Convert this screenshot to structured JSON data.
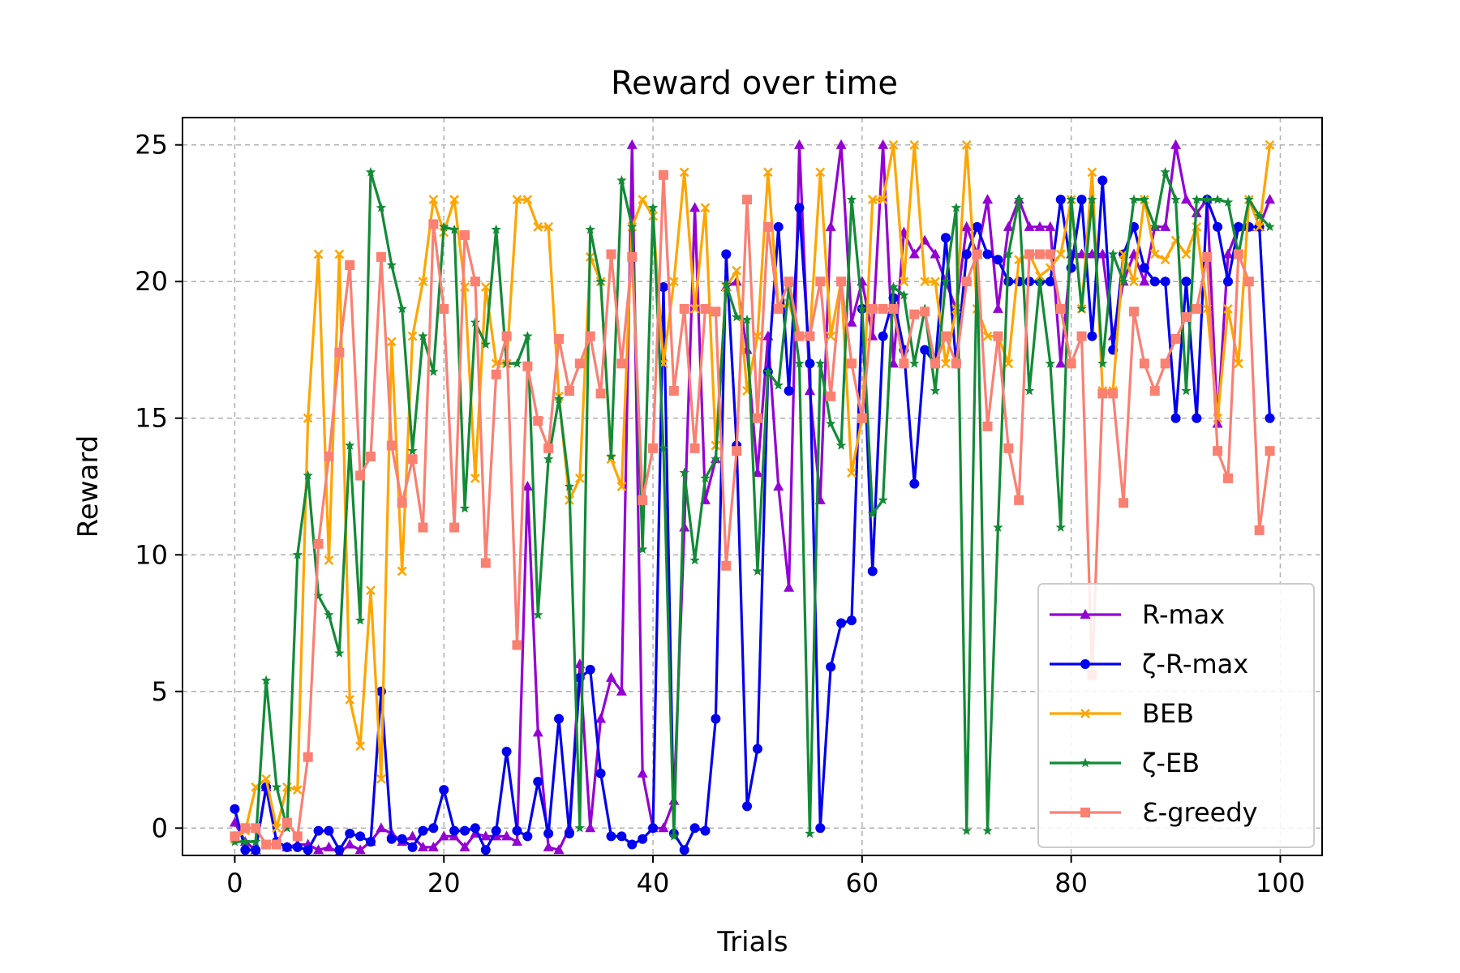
{
  "chart_data": {
    "type": "line",
    "title": "Reward over time",
    "xlabel": "Trials",
    "ylabel": "Reward",
    "xlim": [
      -5,
      104
    ],
    "ylim": [
      -1,
      26
    ],
    "xticks": [
      0,
      20,
      40,
      60,
      80,
      100
    ],
    "yticks": [
      0,
      5,
      10,
      15,
      20,
      25
    ],
    "grid": true,
    "legend_position": "lower-right",
    "series": [
      {
        "name": "R-max",
        "color": "#9400D3",
        "marker": "triangle",
        "values": [
          0.2,
          -0.5,
          -0.8,
          1.5,
          -0.5,
          -0.7,
          -0.6,
          -0.6,
          -0.8,
          -0.7,
          -0.9,
          -0.6,
          -0.8,
          -0.5,
          0,
          -0.2,
          -0.5,
          -0.3,
          -0.7,
          -0.7,
          -0.3,
          -0.3,
          -0.7,
          -0.2,
          -0.3,
          -0.3,
          -0.3,
          -0.5,
          12.5,
          3.5,
          -0.7,
          -0.8,
          0,
          6,
          0,
          4,
          5.5,
          5,
          25,
          2,
          0,
          0,
          1,
          11,
          22.7,
          12,
          13.5,
          19.8,
          20,
          17.5,
          13,
          18,
          12.5,
          8.8,
          25,
          16,
          12,
          22,
          25,
          18.5,
          20,
          18,
          25,
          17,
          21.8,
          21,
          21.5,
          21,
          20,
          19,
          22,
          21,
          23,
          19,
          22,
          23,
          22,
          22,
          22,
          17,
          21,
          21,
          21,
          21,
          18,
          20,
          21,
          20,
          22,
          22,
          25,
          23,
          22.5,
          23,
          14.8,
          21,
          22,
          22,
          22,
          23
        ]
      },
      {
        "name": "ζ-R-max",
        "color": "#0000EE",
        "marker": "circle",
        "values": [
          0.7,
          -0.8,
          -0.8,
          1.5,
          -0.5,
          -0.7,
          -0.7,
          -0.8,
          -0.1,
          -0.1,
          -0.8,
          -0.2,
          -0.3,
          -0.5,
          5,
          -0.4,
          -0.4,
          -0.7,
          -0.1,
          0,
          1.4,
          -0.1,
          -0.1,
          0,
          -0.8,
          -0.1,
          2.8,
          -0.1,
          -0.3,
          1.7,
          -0.2,
          4,
          -0.2,
          5.5,
          5.8,
          2,
          -0.3,
          -0.3,
          -0.6,
          -0.4,
          0,
          19.8,
          -0.2,
          -0.8,
          0,
          -0.1,
          4,
          21,
          14,
          0.8,
          2.9,
          16.7,
          22,
          16,
          22.7,
          17,
          0,
          5.9,
          7.5,
          7.6,
          19,
          9.4,
          18,
          19.4,
          17.5,
          12.6,
          17.5,
          17,
          21.6,
          17,
          21,
          22,
          21,
          20.8,
          20,
          20,
          20,
          20,
          20,
          23,
          20.5,
          23,
          18,
          23.7,
          17.5,
          21,
          22,
          20.5,
          20,
          20,
          15,
          20,
          15,
          23,
          22,
          20,
          22,
          22,
          22,
          15
        ]
      },
      {
        "name": "BEB",
        "color": "#FFA500",
        "marker": "x",
        "values": [
          -0.4,
          -0.1,
          1.5,
          1.8,
          0,
          1.5,
          1.4,
          15,
          21,
          9.8,
          21,
          4.7,
          3,
          8.7,
          1.8,
          17.8,
          9.4,
          18,
          20,
          23,
          21.8,
          23,
          19.8,
          12.8,
          19.8,
          17,
          17,
          23,
          23,
          22,
          22,
          15.8,
          12,
          12.8,
          20.9,
          20,
          13.5,
          12.5,
          22,
          23,
          22.4,
          17,
          20,
          24,
          19,
          22.7,
          14,
          19.8,
          20.4,
          16,
          18,
          24,
          19,
          19.2,
          18,
          18,
          24,
          18,
          20,
          13,
          15,
          23,
          23,
          25,
          20,
          25,
          20,
          20,
          17,
          19,
          25,
          19,
          18,
          18,
          17,
          20.8,
          21,
          20.2,
          20.5,
          21,
          23,
          19,
          24,
          16,
          16,
          21,
          20,
          23,
          21,
          20.8,
          21.5,
          21,
          22,
          19,
          15,
          19,
          17,
          23,
          22,
          25
        ]
      },
      {
        "name": "ζ-EB",
        "color": "#138A36",
        "marker": "star",
        "values": [
          -0.5,
          -0.5,
          -0.5,
          5.4,
          1.5,
          0,
          10,
          12.9,
          8.5,
          7.8,
          6.4,
          14,
          7.6,
          24,
          22.7,
          20.6,
          19,
          13.8,
          18,
          16.7,
          22,
          21.9,
          11.7,
          18.5,
          17.7,
          21.9,
          17,
          17,
          18,
          7.8,
          13.5,
          15.7,
          12.5,
          0,
          21.9,
          20,
          13.6,
          23.7,
          22,
          10.2,
          22.7,
          13.9,
          -0.3,
          13,
          9.8,
          12.8,
          13.5,
          19.9,
          18.7,
          18.6,
          9.4,
          16.7,
          16.2,
          19.8,
          17,
          -0.2,
          17,
          14.8,
          14,
          23,
          19,
          11.5,
          12,
          19.8,
          19.5,
          17,
          19,
          16,
          20,
          22.7,
          -0.1,
          21,
          -0.1,
          11,
          21,
          23,
          16,
          20,
          17,
          11,
          23,
          19,
          23,
          17,
          21,
          20,
          23,
          23,
          22,
          24,
          23,
          16,
          23,
          23,
          23,
          22.9,
          21,
          23,
          22.4,
          22
        ]
      },
      {
        "name": "Ɛ-greedy",
        "color": "#FA8072",
        "marker": "square",
        "values": [
          -0.3,
          0,
          0,
          -0.6,
          -0.6,
          0.2,
          -0.3,
          2.6,
          10.4,
          13.6,
          17.4,
          20.6,
          12.9,
          13.6,
          20.9,
          14,
          11.9,
          13.5,
          11,
          22.1,
          19,
          11,
          21.7,
          20,
          9.7,
          16.6,
          18,
          6.7,
          16.9,
          14.9,
          13.9,
          17.9,
          16,
          17,
          18,
          15.9,
          21,
          17,
          20.9,
          12,
          13.9,
          23.9,
          16,
          19,
          13.9,
          19,
          18.9,
          9.6,
          13.8,
          23,
          15,
          22,
          19,
          20,
          18,
          18,
          20,
          15.8,
          20,
          17,
          15,
          19,
          19,
          19,
          17,
          18.8,
          18.9,
          17,
          18,
          17,
          20,
          21,
          14.7,
          18,
          13.9,
          12,
          21,
          21,
          21,
          19,
          17,
          18,
          5.6,
          15.9,
          15.9,
          11.9,
          18.9,
          17,
          16,
          17,
          17.9,
          18.7,
          19,
          20.9,
          13.8,
          12.8,
          21,
          20,
          10.9,
          13.8
        ]
      }
    ]
  }
}
